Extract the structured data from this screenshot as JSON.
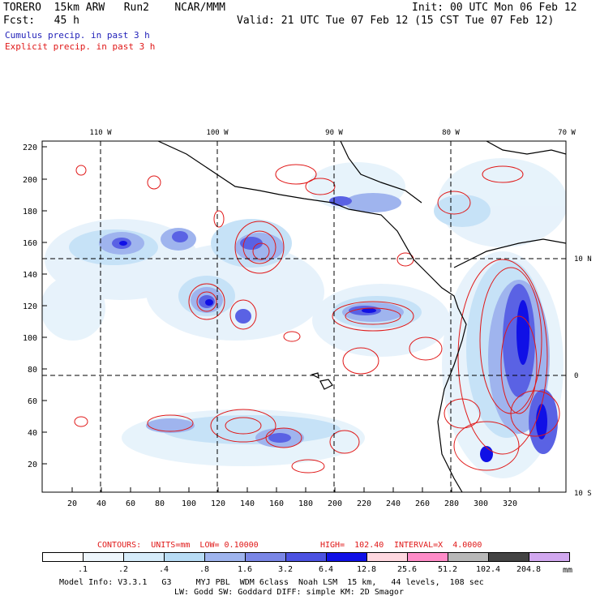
{
  "header": {
    "title_line": "TORERO  15km ARW   Run2    NCAR/MMM",
    "init_line": "Init: 00 UTC Mon 06 Feb 12",
    "fcst_line": "Fcst:   45 h",
    "valid_line": "Valid: 21 UTC Tue 07 Feb 12 (15 CST Tue 07 Feb 12)",
    "legend_cumulus": "Cumulus precip. in past 3 h",
    "legend_explicit": "Explicit precip. in past 3 h"
  },
  "map": {
    "top_labels": [
      "110 W",
      "100 W",
      "90 W",
      "80 W",
      "70 W"
    ],
    "right_labels": [
      "10 N",
      "0",
      "10 S"
    ],
    "y_ticks": [
      "220",
      "200",
      "180",
      "160",
      "140",
      "120",
      "100",
      "80",
      "60",
      "40",
      "20"
    ],
    "x_ticks": [
      "20",
      "40",
      "60",
      "80",
      "100",
      "120",
      "140",
      "160",
      "180",
      "200",
      "220",
      "240",
      "260",
      "280",
      "300",
      "320"
    ]
  },
  "contours": {
    "label": "CONTOURS:  UNITS=mm  LOW= 0.10000",
    "high": "HIGH=  102.40",
    "interval": "INTERVAL=X  4.0000"
  },
  "colorbar": {
    "labels": [
      ".1",
      ".2",
      ".4",
      ".8",
      "1.6",
      "3.2",
      "6.4",
      "12.8",
      "25.6",
      "51.2",
      "102.4",
      "204.8"
    ],
    "unit": "mm",
    "colors": [
      "#ffffff",
      "#eef6fc",
      "#d6ecfa",
      "#b8dcf5",
      "#9fb4ee",
      "#7a86e6",
      "#4c52e2",
      "#1010e6",
      "#ffd8e0",
      "#ff8cc8",
      "#b8b8b8",
      "#444444",
      "#d2a8f0"
    ]
  },
  "footer": {
    "line1": "Model Info: V3.3.1   G3     MYJ PBL  WDM 6class  Noah LSM  15 km,   44 levels,  108 sec",
    "line2": "LW: Godd SW: Goddard DIFF: simple KM: 2D Smagor"
  }
}
